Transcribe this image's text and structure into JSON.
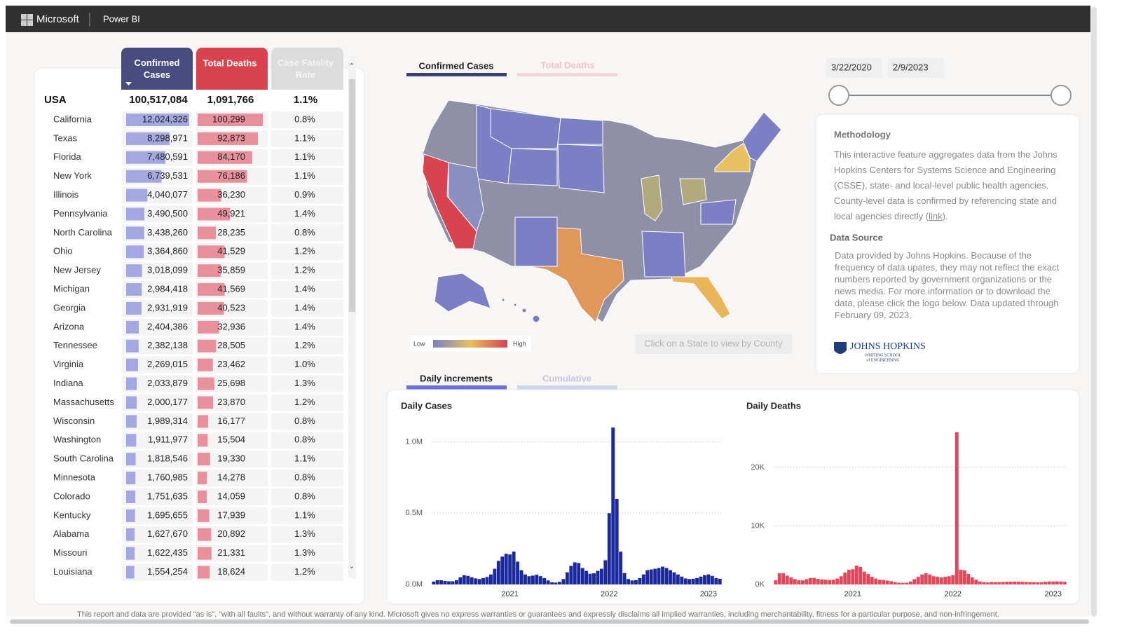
{
  "header": {
    "brand": "Microsoft",
    "product": "Power BI"
  },
  "table": {
    "columns": [
      "Confirmed Cases",
      "Total Deaths",
      "Case Fatality Rate"
    ],
    "total": {
      "name": "USA",
      "cases": "100,517,084",
      "deaths": "1,091,766",
      "cfr": "1.1%"
    },
    "states": [
      "California",
      "Texas",
      "Florida",
      "New York",
      "Illinois",
      "Pennsylvania",
      "North Carolina",
      "Ohio",
      "New Jersey",
      "Michigan",
      "Georgia",
      "Arizona",
      "Tennessee",
      "Virginia",
      "Indiana",
      "Massachusetts",
      "Wisconsin",
      "Washington",
      "South Carolina",
      "Minnesota",
      "Colorado",
      "Kentucky",
      "Alabama",
      "Missouri",
      "Louisiana"
    ],
    "cases": {
      "values": [
        12024326,
        8298971,
        7480591,
        6739531,
        4040077,
        3490500,
        3438260,
        3364860,
        3018099,
        2984418,
        2931919,
        2404386,
        2382138,
        2269015,
        2033879,
        2000177,
        1989314,
        1911977,
        1818546,
        1760985,
        1751635,
        1695655,
        1627670,
        1622435,
        1554254
      ],
      "value_labels": [
        "12,024,326",
        "8,298,971",
        "7,480,591",
        "6,739,531",
        "4,040,077",
        "3,490,500",
        "3,438,260",
        "3,364,860",
        "3,018,099",
        "2,984,418",
        "2,931,919",
        "2,404,386",
        "2,382,138",
        "2,269,015",
        "2,033,879",
        "2,000,177",
        "1,989,314",
        "1,911,977",
        "1,818,546",
        "1,760,985",
        "1,751,635",
        "1,695,655",
        "1,627,670",
        "1,622,435",
        "1,554,254"
      ],
      "color": "#a3a8e0"
    },
    "deaths": {
      "values": [
        100299,
        92873,
        84170,
        76186,
        36230,
        49921,
        28235,
        41529,
        35859,
        41569,
        40523,
        32936,
        28505,
        23462,
        25698,
        23870,
        16177,
        15504,
        19330,
        14278,
        14059,
        17939,
        20892,
        21331,
        18624
      ],
      "value_labels": [
        "100,299",
        "92,873",
        "84,170",
        "76,186",
        "36,230",
        "49,921",
        "28,235",
        "41,529",
        "35,859",
        "41,569",
        "40,523",
        "32,936",
        "28,505",
        "23,462",
        "25,698",
        "23,870",
        "16,177",
        "15,504",
        "19,330",
        "14,278",
        "14,059",
        "17,939",
        "20,892",
        "21,331",
        "18,624"
      ],
      "color": "#e8909b"
    },
    "cfr": [
      "0.8%",
      "1.1%",
      "1.1%",
      "1.1%",
      "0.9%",
      "1.4%",
      "0.8%",
      "1.2%",
      "1.2%",
      "1.4%",
      "1.4%",
      "1.4%",
      "1.2%",
      "1.0%",
      "1.3%",
      "1.2%",
      "0.8%",
      "0.8%",
      "1.1%",
      "0.8%",
      "0.8%",
      "1.1%",
      "1.3%",
      "1.3%",
      "1.2%"
    ]
  },
  "map": {
    "tabs": [
      "Confirmed Cases",
      "Total Deaths"
    ],
    "legend_low": "Low",
    "legend_high": "High",
    "hint": "Click on a State to view by County"
  },
  "date_range": {
    "start": "3/22/2020",
    "end": "2/9/2023"
  },
  "info": {
    "methodology_title": "Methodology",
    "methodology_text": "This interactive feature aggregates data from the Johns Hopkins Centers for Systems Science and Engineering (CSSE), state- and local-level public health agencies. County-level data is confirmed by referencing state and local agencies directly (",
    "link": "link",
    "methodology_end": ").",
    "data_source_title": "Data Source",
    "data_source_text": "Data provided by Johns Hopkins. Because of the frequency of data upates, they may not reflect the exact numbers reported by government organizations or the news media. For more information or to download the data, please click the logo below. Data updated through February 09, 2023.",
    "logo": "JOHNS HOPKINS",
    "logo_sub1": "WHITING SCHOOL",
    "logo_sub2": "of ENGINEERING"
  },
  "trend_tabs": [
    "Daily increments",
    "Cumulative"
  ],
  "chart_data": [
    {
      "type": "bar",
      "title": "Daily Cases",
      "color": "#1a2a9c",
      "grid": true,
      "categories": [
        null,
        null,
        null,
        null,
        null,
        null,
        null,
        null,
        null,
        null,
        null,
        null,
        null,
        null,
        null,
        null,
        null,
        null,
        null,
        null,
        "2021",
        null,
        null,
        null,
        null,
        null,
        null,
        null,
        null,
        null,
        null,
        null,
        null,
        null,
        null,
        null,
        null,
        null,
        null,
        null,
        null,
        null,
        null,
        null,
        null,
        null,
        "2022",
        null,
        null,
        null,
        null,
        null,
        null,
        null,
        null,
        null,
        null,
        null,
        null,
        null,
        null,
        null,
        null,
        null,
        null,
        null,
        null,
        null,
        null,
        null,
        null,
        null,
        "2023",
        null,
        null,
        null
      ],
      "values": [
        20000,
        30000,
        29000,
        25000,
        22000,
        22000,
        30000,
        50000,
        65000,
        60000,
        50000,
        42000,
        38000,
        45000,
        52000,
        70000,
        110000,
        165000,
        195000,
        215000,
        210000,
        230000,
        160000,
        100000,
        70000,
        58000,
        62000,
        68000,
        58000,
        45000,
        28000,
        15000,
        13000,
        18000,
        38000,
        85000,
        130000,
        155000,
        150000,
        115000,
        95000,
        75000,
        78000,
        95000,
        110000,
        170000,
        500000,
        1100000,
        600000,
        230000,
        80000,
        38000,
        28000,
        30000,
        45000,
        70000,
        100000,
        105000,
        110000,
        115000,
        125000,
        115000,
        100000,
        85000,
        70000,
        55000,
        42000,
        38000,
        40000,
        45000,
        55000,
        65000,
        70000,
        60000,
        45000,
        40000
      ],
      "ylim": [
        0,
        1150000
      ],
      "yticks": [
        {
          "value": 0,
          "label": "0.0M"
        },
        {
          "value": 500000,
          "label": "0.5M"
        },
        {
          "value": 1000000,
          "label": "1.0M"
        }
      ]
    },
    {
      "type": "bar",
      "title": "Daily Deaths",
      "color": "#e0475a",
      "grid": true,
      "categories": [
        null,
        null,
        null,
        null,
        null,
        null,
        null,
        null,
        null,
        null,
        null,
        null,
        null,
        null,
        null,
        null,
        null,
        null,
        null,
        null,
        "2021",
        null,
        null,
        null,
        null,
        null,
        null,
        null,
        null,
        null,
        null,
        null,
        null,
        null,
        null,
        null,
        null,
        null,
        null,
        null,
        null,
        null,
        null,
        null,
        null,
        null,
        "2022",
        null,
        null,
        null,
        null,
        null,
        null,
        null,
        null,
        null,
        null,
        null,
        null,
        null,
        null,
        null,
        null,
        null,
        null,
        null,
        null,
        null,
        null,
        null,
        null,
        null,
        "2023",
        null,
        null,
        null
      ],
      "values": [
        700,
        1900,
        1900,
        1500,
        1200,
        900,
        700,
        700,
        900,
        1100,
        1100,
        950,
        850,
        800,
        750,
        800,
        1000,
        1400,
        2000,
        2500,
        2600,
        3200,
        3000,
        2200,
        1800,
        1300,
        1000,
        800,
        750,
        650,
        550,
        400,
        300,
        280,
        300,
        500,
        900,
        1300,
        1700,
        1900,
        1700,
        1400,
        1300,
        1200,
        1300,
        1400,
        1600,
        26000,
        2500,
        2400,
        1800,
        1200,
        800,
        500,
        400,
        350,
        400,
        400,
        400,
        420,
        450,
        470,
        480,
        470,
        450,
        420,
        400,
        380,
        350,
        380,
        450,
        500,
        500,
        520,
        500,
        450
      ],
      "ylim": [
        0,
        28000
      ],
      "yticks": [
        {
          "value": 0,
          "label": "0K"
        },
        {
          "value": 10000,
          "label": "10K"
        },
        {
          "value": 20000,
          "label": "20K"
        }
      ]
    }
  ],
  "footer": "This report and data are provided \"as is\", \"with all faults\", and without warranty of any kind. Microsoft gives no express warranties or guarantees and expressly disclaims all implied warranties, including merchantability, fitness for a particular purpose, and non-infringement."
}
